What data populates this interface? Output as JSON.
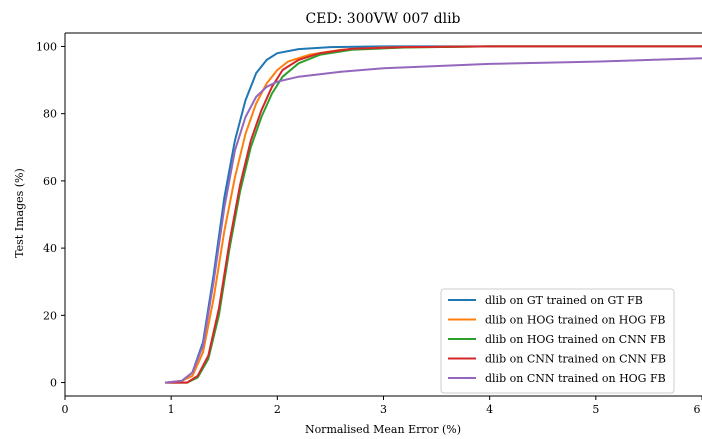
{
  "chart_data": {
    "type": "line",
    "title": "CED: 300VW 007 dlib",
    "xlabel": "Normalised Mean Error (%)",
    "ylabel": "Test Images (%)",
    "xlim": [
      0,
      6
    ],
    "ylim": [
      -4,
      104
    ],
    "xticks": [
      0,
      1,
      2,
      3,
      4,
      5,
      6
    ],
    "yticks": [
      0,
      20,
      40,
      60,
      80,
      100
    ],
    "xtick_labels": [
      "0",
      "1",
      "2",
      "3",
      "4",
      "5",
      "6"
    ],
    "ytick_labels": [
      "0",
      "20",
      "40",
      "60",
      "80",
      "100"
    ],
    "legend_position": "lower-right",
    "grid": false,
    "series": [
      {
        "name": "dlib on GT trained on GT FB",
        "color": "#1f77b4",
        "points": [
          [
            0.95,
            0
          ],
          [
            1.1,
            0.5
          ],
          [
            1.2,
            3
          ],
          [
            1.3,
            12
          ],
          [
            1.4,
            32
          ],
          [
            1.5,
            55
          ],
          [
            1.6,
            72
          ],
          [
            1.7,
            84
          ],
          [
            1.8,
            92
          ],
          [
            1.9,
            96
          ],
          [
            2.0,
            98
          ],
          [
            2.2,
            99.2
          ],
          [
            2.5,
            99.8
          ],
          [
            3.0,
            100
          ],
          [
            6.0,
            100
          ]
        ]
      },
      {
        "name": "dlib on HOG trained on HOG FB",
        "color": "#ff7f0e",
        "points": [
          [
            0.95,
            0
          ],
          [
            1.1,
            0.5
          ],
          [
            1.2,
            2
          ],
          [
            1.3,
            9
          ],
          [
            1.4,
            25
          ],
          [
            1.5,
            45
          ],
          [
            1.6,
            61
          ],
          [
            1.7,
            74
          ],
          [
            1.8,
            83
          ],
          [
            1.9,
            89
          ],
          [
            2.0,
            93
          ],
          [
            2.1,
            95.5
          ],
          [
            2.3,
            97.5
          ],
          [
            2.6,
            99
          ],
          [
            3.0,
            99.7
          ],
          [
            4.0,
            100
          ],
          [
            6.0,
            100
          ]
        ]
      },
      {
        "name": "dlib on HOG trained on CNN FB",
        "color": "#2ca02c",
        "points": [
          [
            0.95,
            0
          ],
          [
            1.15,
            0
          ],
          [
            1.25,
            1.5
          ],
          [
            1.35,
            7
          ],
          [
            1.45,
            20
          ],
          [
            1.55,
            40
          ],
          [
            1.65,
            57
          ],
          [
            1.75,
            70
          ],
          [
            1.85,
            79
          ],
          [
            1.95,
            86
          ],
          [
            2.05,
            91
          ],
          [
            2.2,
            95
          ],
          [
            2.4,
            97.5
          ],
          [
            2.7,
            99
          ],
          [
            3.2,
            99.7
          ],
          [
            4.0,
            100
          ],
          [
            6.0,
            100
          ]
        ]
      },
      {
        "name": "dlib on CNN trained on CNN FB",
        "color": "#d62728",
        "points": [
          [
            0.95,
            0
          ],
          [
            1.15,
            0
          ],
          [
            1.25,
            2
          ],
          [
            1.35,
            8
          ],
          [
            1.45,
            22
          ],
          [
            1.55,
            42
          ],
          [
            1.65,
            59
          ],
          [
            1.75,
            72
          ],
          [
            1.85,
            81
          ],
          [
            1.95,
            88
          ],
          [
            2.05,
            93
          ],
          [
            2.2,
            96
          ],
          [
            2.4,
            98
          ],
          [
            2.7,
            99.3
          ],
          [
            3.2,
            99.8
          ],
          [
            4.0,
            100
          ],
          [
            6.0,
            100
          ]
        ]
      },
      {
        "name": "dlib on CNN trained on HOG FB",
        "color": "#9467bd",
        "points": [
          [
            0.95,
            0
          ],
          [
            1.1,
            0.5
          ],
          [
            1.2,
            3
          ],
          [
            1.3,
            11
          ],
          [
            1.4,
            30
          ],
          [
            1.5,
            52
          ],
          [
            1.6,
            69
          ],
          [
            1.7,
            79
          ],
          [
            1.8,
            85
          ],
          [
            1.9,
            88
          ],
          [
            2.0,
            89.5
          ],
          [
            2.2,
            91
          ],
          [
            2.6,
            92.5
          ],
          [
            3.0,
            93.5
          ],
          [
            4.0,
            94.8
          ],
          [
            5.0,
            95.5
          ],
          [
            6.0,
            96.5
          ]
        ]
      }
    ]
  }
}
